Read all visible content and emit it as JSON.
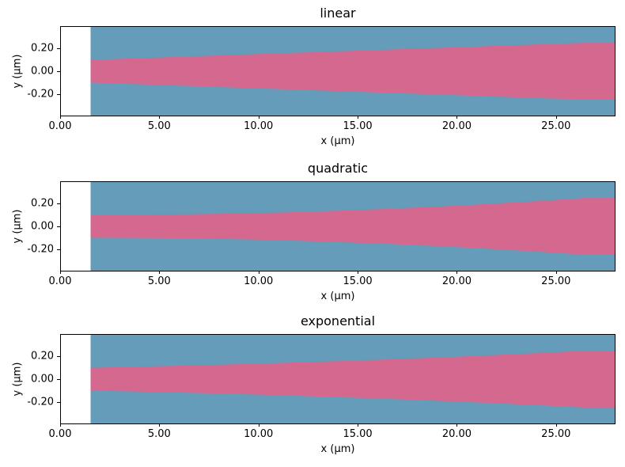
{
  "figure": {
    "background": "#ffffff",
    "colors": {
      "cladding": "#649cba",
      "core": "#d4688e",
      "axis": "#000000",
      "empty": "#ffffff"
    }
  },
  "chart_data": [
    {
      "type": "area",
      "title": "linear",
      "xlabel": "x (µm)",
      "ylabel": "y (µm)",
      "xlim": [
        0,
        28
      ],
      "ylim": [
        -0.39,
        0.39
      ],
      "xticks": [
        0,
        5,
        10,
        15,
        20,
        25
      ],
      "xtick_labels": [
        "0.00",
        "5.00",
        "10.00",
        "15.00",
        "20.00",
        "25.00"
      ],
      "yticks": [
        0.2,
        0.0,
        -0.2
      ],
      "ytick_labels": [
        "0.20",
        "0.00",
        "-0.20"
      ],
      "grid": false,
      "legend": null,
      "regions": {
        "cladding": {
          "x_start": 1.5,
          "x_end": 28,
          "color_key": "cladding"
        },
        "core": {
          "taper_profile": "linear",
          "width_start_um": 0.2,
          "width_end_um": 0.5,
          "taper_x_start": 1.5,
          "taper_x_end": 26.5,
          "x": [
            1.5,
            4,
            6.5,
            9,
            11.5,
            14,
            16.5,
            19,
            21.5,
            24,
            26.5,
            28
          ],
          "half_width": [
            0.1,
            0.115,
            0.13,
            0.145,
            0.16,
            0.175,
            0.19,
            0.205,
            0.22,
            0.235,
            0.25,
            0.25
          ],
          "color_key": "core"
        }
      }
    },
    {
      "type": "area",
      "title": "quadratic",
      "xlabel": "x (µm)",
      "ylabel": "y (µm)",
      "xlim": [
        0,
        28
      ],
      "ylim": [
        -0.39,
        0.39
      ],
      "xticks": [
        0,
        5,
        10,
        15,
        20,
        25
      ],
      "xtick_labels": [
        "0.00",
        "5.00",
        "10.00",
        "15.00",
        "20.00",
        "25.00"
      ],
      "yticks": [
        0.2,
        0.0,
        -0.2
      ],
      "ytick_labels": [
        "0.20",
        "0.00",
        "-0.20"
      ],
      "grid": false,
      "legend": null,
      "regions": {
        "cladding": {
          "x_start": 1.5,
          "x_end": 28,
          "color_key": "cladding"
        },
        "core": {
          "taper_profile": "quadratic",
          "width_start_um": 0.2,
          "width_end_um": 0.5,
          "taper_x_start": 1.5,
          "taper_x_end": 26.5,
          "x": [
            1.5,
            4,
            6.5,
            9,
            11.5,
            14,
            16.5,
            19,
            21.5,
            24,
            26.5,
            28
          ],
          "half_width": [
            0.1,
            0.1015,
            0.106,
            0.1135,
            0.124,
            0.1375,
            0.154,
            0.1735,
            0.196,
            0.2215,
            0.25,
            0.25
          ],
          "color_key": "core"
        }
      }
    },
    {
      "type": "area",
      "title": "exponential",
      "xlabel": "x (µm)",
      "ylabel": "y (µm)",
      "xlim": [
        0,
        28
      ],
      "ylim": [
        -0.39,
        0.39
      ],
      "xticks": [
        0,
        5,
        10,
        15,
        20,
        25
      ],
      "xtick_labels": [
        "0.00",
        "5.00",
        "10.00",
        "15.00",
        "20.00",
        "25.00"
      ],
      "yticks": [
        0.2,
        0.0,
        -0.2
      ],
      "ytick_labels": [
        "0.20",
        "0.00",
        "-0.20"
      ],
      "grid": false,
      "legend": null,
      "regions": {
        "cladding": {
          "x_start": 1.5,
          "x_end": 28,
          "color_key": "cladding"
        },
        "core": {
          "taper_profile": "exponential",
          "width_start_um": 0.2,
          "width_end_um": 0.5,
          "taper_x_start": 1.5,
          "taper_x_end": 26.5,
          "x": [
            1.5,
            4,
            6.5,
            9,
            11.5,
            14,
            16.5,
            19,
            21.5,
            24,
            26.5,
            28
          ],
          "half_width": [
            0.1,
            0.1096,
            0.1201,
            0.1316,
            0.1443,
            0.1581,
            0.1733,
            0.1899,
            0.2081,
            0.2281,
            0.25,
            0.25
          ],
          "color_key": "core"
        }
      }
    }
  ]
}
